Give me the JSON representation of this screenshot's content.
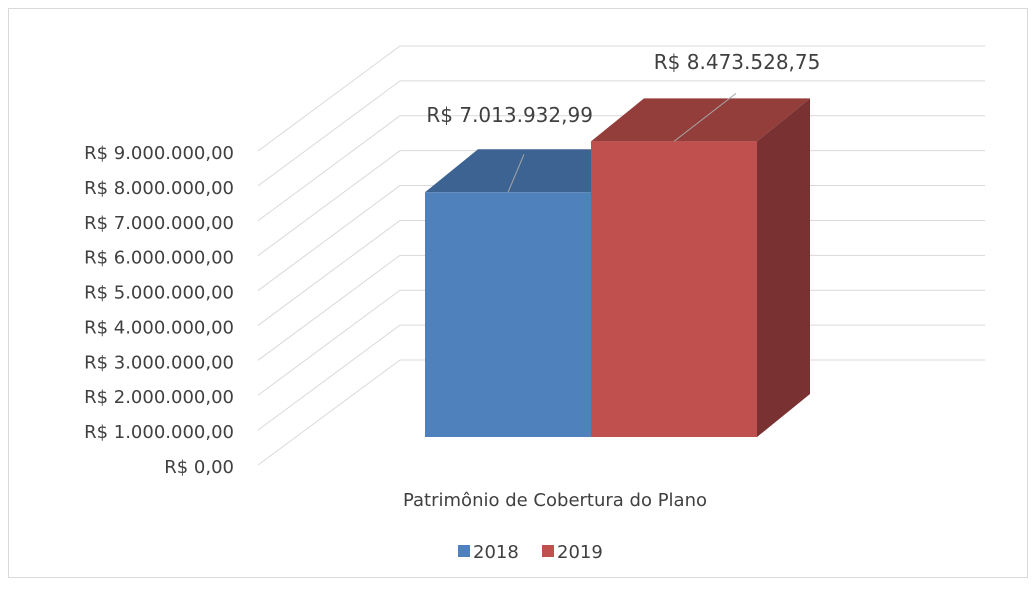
{
  "chart_data": {
    "type": "bar3d",
    "categories": [
      "Patrimônio de Cobertura do Plano"
    ],
    "series": [
      {
        "name": "2018",
        "color": "#4f81bd",
        "values": [
          7013932.99
        ],
        "value_labels": [
          "R$ 7.013.932,99"
        ]
      },
      {
        "name": "2019",
        "color": "#c0504d",
        "values": [
          8473528.75
        ],
        "value_labels": [
          "R$ 8.473.528,75"
        ]
      }
    ],
    "ylim": [
      0,
      9000000
    ],
    "yticks": [
      {
        "value": 0,
        "label": "R$ 0,00"
      },
      {
        "value": 1000000,
        "label": "R$ 1.000.000,00"
      },
      {
        "value": 2000000,
        "label": "R$ 2.000.000,00"
      },
      {
        "value": 3000000,
        "label": "R$ 3.000.000,00"
      },
      {
        "value": 4000000,
        "label": "R$ 4.000.000,00"
      },
      {
        "value": 5000000,
        "label": "R$ 5.000.000,00"
      },
      {
        "value": 6000000,
        "label": "R$ 6.000.000,00"
      },
      {
        "value": 7000000,
        "label": "R$ 7.000.000,00"
      },
      {
        "value": 8000000,
        "label": "R$ 8.000.000,00"
      },
      {
        "value": 9000000,
        "label": "R$ 9.000.000,00"
      }
    ],
    "grid": true,
    "legend": "bottom"
  }
}
